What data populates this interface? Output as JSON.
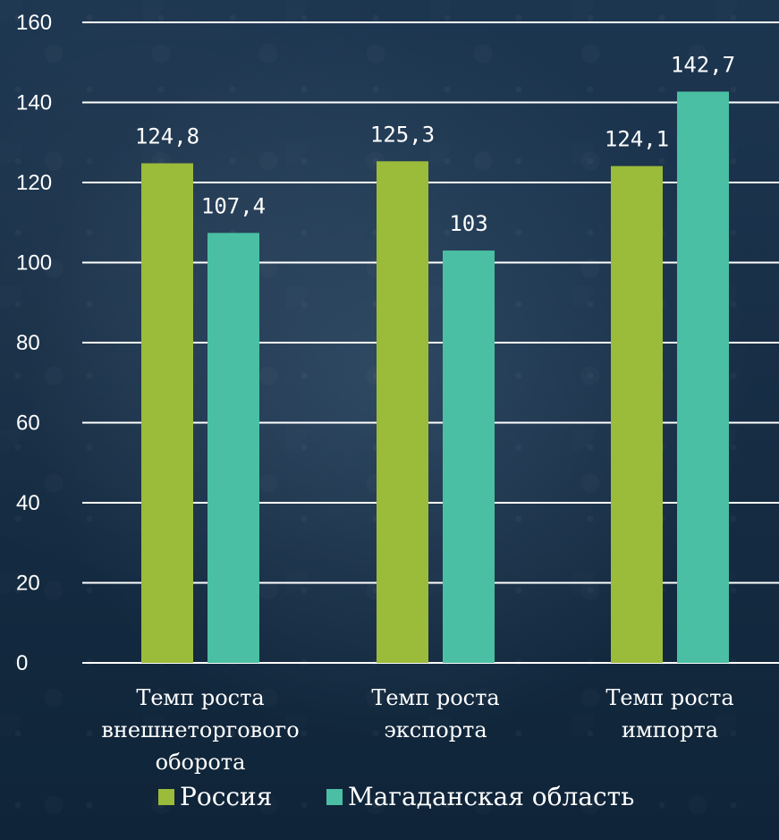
{
  "chart_data": {
    "type": "bar",
    "categories": [
      [
        "Темп роста",
        "внешнеторгового",
        "оборота"
      ],
      [
        "Темп роста",
        "экспорта"
      ],
      [
        "Темп роста",
        "импорта"
      ]
    ],
    "series": [
      {
        "name": "Россия",
        "values": [
          124.8,
          125.3,
          124.1
        ],
        "labels": [
          "124,8",
          "125,3",
          "124,1"
        ],
        "color": "#9BBB3A"
      },
      {
        "name": "Магаданская область",
        "values": [
          107.4,
          103,
          142.7
        ],
        "labels": [
          "107,4",
          "103",
          "142,7"
        ],
        "color": "#4ABFA3"
      }
    ],
    "ylim": [
      0,
      160
    ],
    "yticks": [
      0,
      20,
      40,
      60,
      80,
      100,
      120,
      140,
      160
    ],
    "grid": true,
    "legend_position": "bottom",
    "colors": {
      "background": "#1B3550",
      "grid": "#FFFFFF",
      "text": "#FFFFFF"
    }
  }
}
